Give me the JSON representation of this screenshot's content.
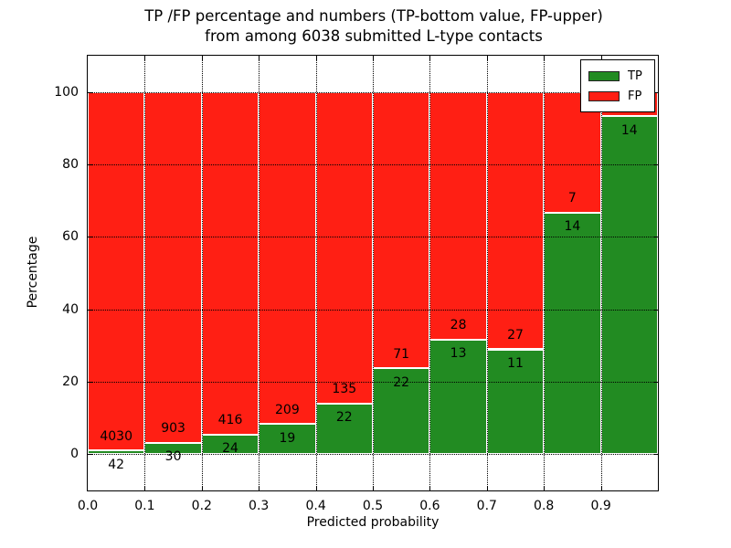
{
  "title": {
    "line1": "TP /FP percentage and numbers (TP-bottom value, FP-upper)",
    "line2": "from among 6038 submitted L-type contacts"
  },
  "chart_data": {
    "type": "bar",
    "stacked": true,
    "normalized": "each bin scaled so TP+FP = 100%",
    "title": "TP /FP percentage and numbers (TP-bottom value, FP-upper)\nfrom among 6038 submitted L-type contacts",
    "xlabel": "Predicted probability",
    "ylabel": "Percentage",
    "total_submitted": 6038,
    "xlim": [
      0.0,
      1.0
    ],
    "ylim": [
      -10,
      110
    ],
    "grid": "dotted",
    "legend": {
      "location": "upper right",
      "entries": [
        "TP",
        "FP"
      ]
    },
    "bin_edges": [
      0.0,
      0.1,
      0.2,
      0.3,
      0.4,
      0.5,
      0.6,
      0.7,
      0.8,
      0.9,
      1.0
    ],
    "x_ticks": {
      "values": [
        0.0,
        0.1,
        0.2,
        0.3,
        0.4,
        0.5,
        0.6,
        0.7,
        0.8,
        0.9
      ],
      "labels": [
        "0.0",
        "0.1",
        "0.2",
        "0.3",
        "0.4",
        "0.5",
        "0.6",
        "0.7",
        "0.8",
        "0.9"
      ]
    },
    "y_ticks": {
      "values": [
        0,
        20,
        40,
        60,
        80,
        100
      ],
      "labels": [
        "0",
        "20",
        "40",
        "60",
        "80",
        "100"
      ]
    },
    "series": [
      {
        "name": "TP",
        "color": "#228b22",
        "counts": [
          42,
          30,
          24,
          19,
          22,
          22,
          13,
          11,
          14,
          14
        ]
      },
      {
        "name": "FP",
        "color": "#ff1f14",
        "counts": [
          4030,
          903,
          416,
          209,
          135,
          71,
          28,
          27,
          7,
          1
        ]
      }
    ]
  },
  "colors": {
    "tp_green": "#228b22",
    "fp_red": "#ff1f14",
    "grid": "#000000",
    "frame": "#000000",
    "background": "#ffffff"
  }
}
